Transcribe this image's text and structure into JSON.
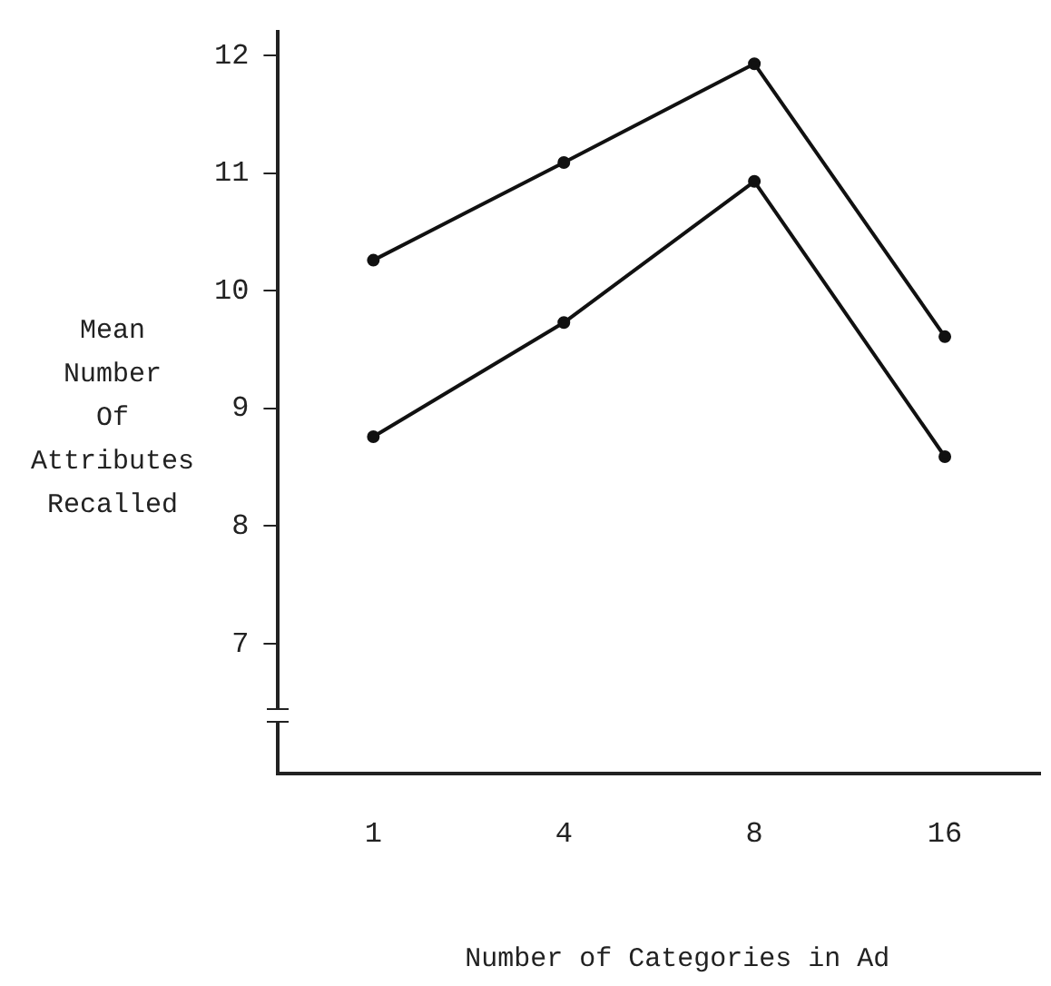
{
  "chart_data": {
    "type": "line",
    "xlabel": "Number of Categories in Ad",
    "ylabel": "Mean\nNumber\nOf\nAttributes\nRecalled",
    "categories": [
      "1",
      "4",
      "8",
      "16"
    ],
    "series": [
      {
        "color": "#111111",
        "values": [
          10.26,
          11.09,
          11.93,
          9.61
        ]
      },
      {
        "color": "#111111",
        "values": [
          8.76,
          9.73,
          10.93,
          8.59
        ]
      }
    ],
    "ylim": [
      5.9,
      12.2
    ],
    "yticks": [
      7,
      8,
      9,
      10,
      11,
      12
    ],
    "grid": false,
    "legend": false,
    "marker": "circle",
    "line_style": "solid"
  }
}
